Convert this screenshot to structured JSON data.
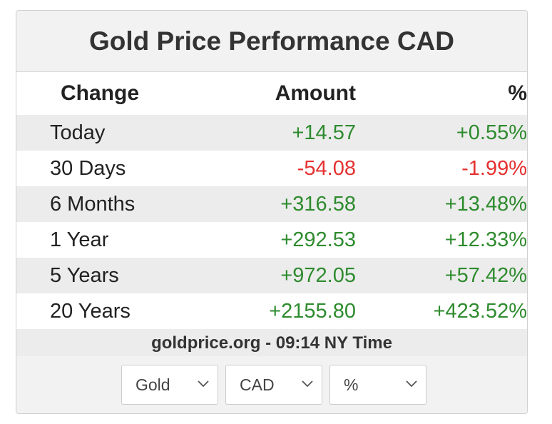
{
  "title": "Gold Price Performance CAD",
  "headers": {
    "change": "Change",
    "amount": "Amount",
    "pct": "%"
  },
  "rows": [
    {
      "label": "Today",
      "amount": "+14.57",
      "pct": "+0.55%",
      "trend": "pos"
    },
    {
      "label": "30 Days",
      "amount": "-54.08",
      "pct": "-1.99%",
      "trend": "neg"
    },
    {
      "label": "6 Months",
      "amount": "+316.58",
      "pct": "+13.48%",
      "trend": "pos"
    },
    {
      "label": "1 Year",
      "amount": "+292.53",
      "pct": "+12.33%",
      "trend": "pos"
    },
    {
      "label": "5 Years",
      "amount": "+972.05",
      "pct": "+57.42%",
      "trend": "pos"
    },
    {
      "label": "20 Years",
      "amount": "+2155.80",
      "pct": "+423.52%",
      "trend": "pos"
    }
  ],
  "source": "goldprice.org - 09:14 NY Time",
  "selects": {
    "metal": "Gold",
    "currency": "CAD",
    "mode": "%"
  },
  "icons": {
    "dropdown": "chevron-down-icon"
  },
  "colors": {
    "positive": "#2e8b2e",
    "negative": "#e53030"
  }
}
